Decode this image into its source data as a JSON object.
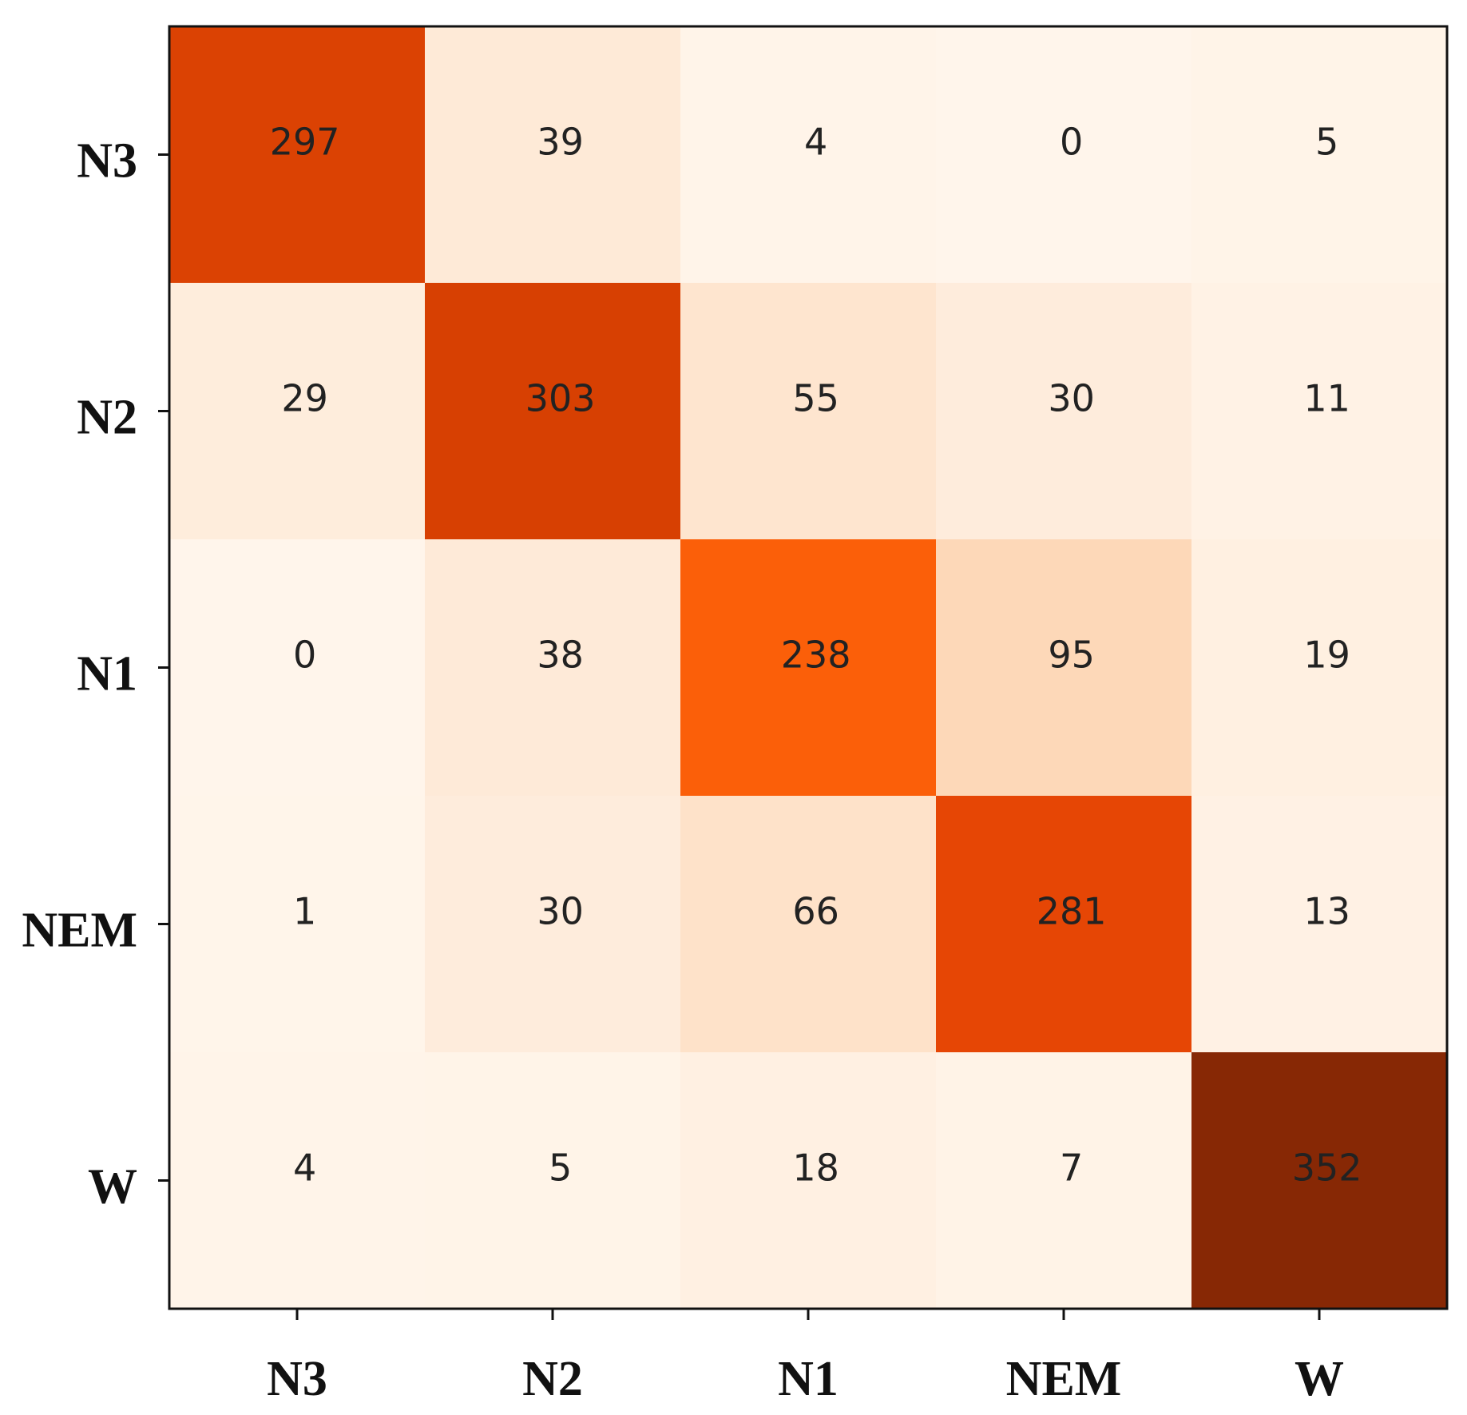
{
  "chart_data": {
    "type": "heatmap",
    "rows": [
      "N3",
      "N2",
      "N1",
      "NEM",
      "W"
    ],
    "cols": [
      "N3",
      "N2",
      "N1",
      "NEM",
      "W"
    ],
    "values": [
      [
        297,
        39,
        4,
        0,
        5
      ],
      [
        29,
        303,
        55,
        30,
        11
      ],
      [
        0,
        38,
        238,
        95,
        19
      ],
      [
        1,
        30,
        66,
        281,
        13
      ],
      [
        4,
        5,
        18,
        7,
        352
      ]
    ],
    "colormap": "Oranges",
    "value_range": [
      0,
      352
    ],
    "grid": false,
    "legend": "none"
  }
}
